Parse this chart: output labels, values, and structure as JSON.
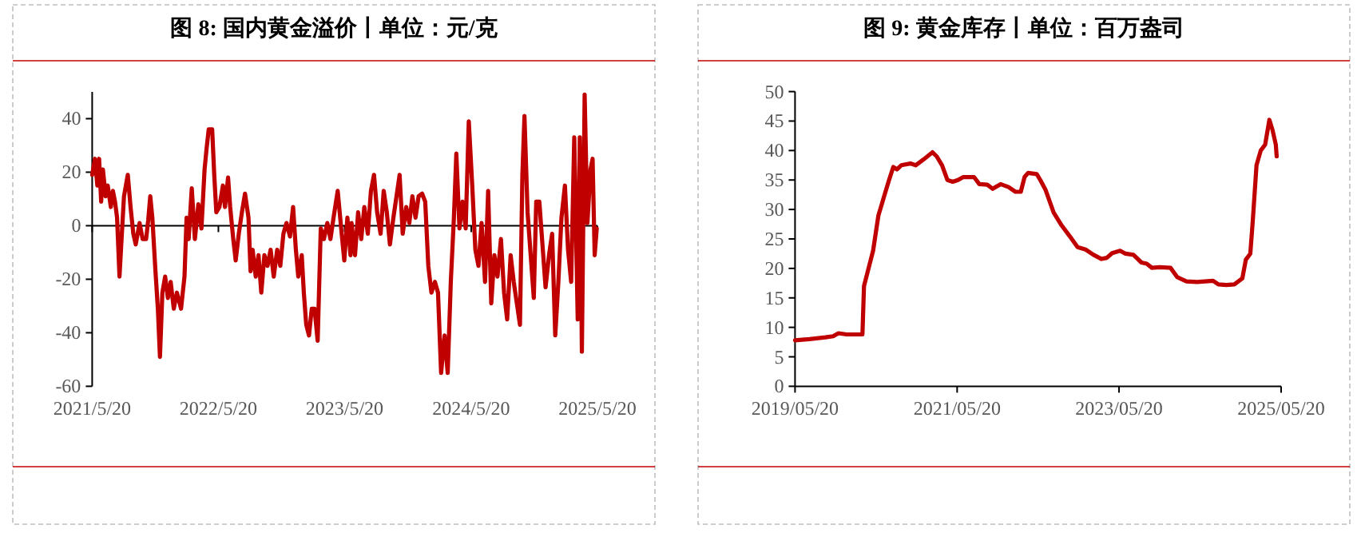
{
  "chart_data": [
    {
      "type": "line",
      "title": "图 8: 国内黄金溢价丨单位：元/克",
      "x": [
        "2021-05-20",
        "2021-05-28",
        "2021-06-04",
        "2021-06-09",
        "2021-06-15",
        "2021-06-20",
        "2021-06-28",
        "2021-07-04",
        "2021-07-13",
        "2021-07-19",
        "2021-07-25",
        "2021-07-31",
        "2021-08-07",
        "2021-08-13",
        "2021-08-20",
        "2021-08-31",
        "2021-09-08",
        "2021-09-16",
        "2021-09-23",
        "2021-10-04",
        "2021-10-13",
        "2021-10-23",
        "2021-10-29",
        "2021-11-04",
        "2021-11-10",
        "2021-11-19",
        "2021-11-26",
        "2021-12-02",
        "2021-12-09",
        "2021-12-17",
        "2021-12-25",
        "2022-01-02",
        "2022-01-11",
        "2022-01-20",
        "2022-02-01",
        "2022-02-11",
        "2022-02-17",
        "2022-02-23",
        "2022-03-04",
        "2022-03-13",
        "2022-03-23",
        "2022-04-01",
        "2022-04-10",
        "2022-04-16",
        "2022-04-22",
        "2022-05-02",
        "2022-05-08",
        "2022-05-14",
        "2022-05-23",
        "2022-06-02",
        "2022-06-08",
        "2022-06-17",
        "2022-06-23",
        "2022-07-02",
        "2022-07-09",
        "2022-07-18",
        "2022-07-27",
        "2022-08-05",
        "2022-08-15",
        "2022-08-21",
        "2022-08-27",
        "2022-09-05",
        "2022-09-13",
        "2022-09-21",
        "2022-09-30",
        "2022-10-09",
        "2022-10-18",
        "2022-10-27",
        "2022-11-06",
        "2022-11-15",
        "2022-11-24",
        "2022-12-03",
        "2022-12-13",
        "2022-12-22",
        "2022-12-30",
        "2023-01-06",
        "2023-01-16",
        "2023-01-22",
        "2023-01-29",
        "2023-02-06",
        "2023-02-14",
        "2023-02-22",
        "2023-03-03",
        "2023-03-12",
        "2023-03-21",
        "2023-03-31",
        "2023-04-09",
        "2023-04-18",
        "2023-04-30",
        "2023-05-10",
        "2023-05-19",
        "2023-05-28",
        "2023-06-06",
        "2023-06-09",
        "2023-06-19",
        "2023-06-28",
        "2023-07-07",
        "2023-07-16",
        "2023-07-26",
        "2023-08-04",
        "2023-08-13",
        "2023-08-22",
        "2023-09-01",
        "2023-09-10",
        "2023-09-19",
        "2023-09-28",
        "2023-10-08",
        "2023-10-17",
        "2023-10-26",
        "2023-11-04",
        "2023-11-14",
        "2023-11-23",
        "2023-12-02",
        "2023-12-11",
        "2023-12-20",
        "2023-12-30",
        "2024-01-08",
        "2024-01-17",
        "2024-01-26",
        "2024-02-05",
        "2024-02-14",
        "2024-02-23",
        "2024-03-04",
        "2024-03-13",
        "2024-03-22",
        "2024-03-31",
        "2024-04-07",
        "2024-04-16",
        "2024-04-25",
        "2024-05-04",
        "2024-05-13",
        "2024-05-23",
        "2024-06-01",
        "2024-06-10",
        "2024-06-19",
        "2024-06-29",
        "2024-07-08",
        "2024-07-17",
        "2024-07-26",
        "2024-08-04",
        "2024-08-14",
        "2024-08-23",
        "2024-09-01",
        "2024-09-11",
        "2024-09-20",
        "2024-09-29",
        "2024-10-08",
        "2024-10-15",
        "2024-10-21",
        "2024-10-30",
        "2024-11-08",
        "2024-11-17",
        "2024-11-24",
        "2024-12-03",
        "2024-12-12",
        "2024-12-21",
        "2024-12-31",
        "2025-01-09",
        "2025-01-18",
        "2025-01-27",
        "2025-02-05",
        "2025-02-15",
        "2025-02-24",
        "2025-03-05",
        "2025-03-14",
        "2025-03-24",
        "2025-03-30",
        "2025-04-05",
        "2025-04-13",
        "2025-04-21",
        "2025-04-30",
        "2025-05-06",
        "2025-05-12",
        "2025-05-18"
      ],
      "series": [
        {
          "color": "#c00000",
          "values": [
            19,
            25,
            15,
            25,
            9,
            21,
            11,
            15,
            7,
            13,
            9,
            3,
            -19,
            -5,
            11,
            19,
            7,
            -3,
            -7,
            1,
            -5,
            -5,
            2,
            11,
            3,
            -17,
            -31,
            -49,
            -25,
            -19,
            -27,
            -21,
            -31,
            -25,
            -31,
            -19,
            3,
            -5,
            14,
            -5,
            8,
            -1,
            21,
            29,
            36,
            36,
            19,
            5,
            7,
            15,
            7,
            18,
            7,
            -5,
            -13,
            -3,
            5,
            12,
            3,
            -17,
            -9,
            -19,
            -11,
            -25,
            -11,
            -15,
            -9,
            -19,
            -9,
            -15,
            -3,
            1,
            -4,
            7,
            -9,
            -19,
            -11,
            -25,
            -37,
            -41,
            -31,
            -31,
            -43,
            -1,
            -5,
            1,
            -5,
            3,
            13,
            -1,
            -13,
            3,
            -11,
            1,
            -11,
            5,
            -5,
            7,
            -3,
            13,
            19,
            5,
            -3,
            13,
            5,
            -7,
            3,
            11,
            19,
            -3,
            7,
            1,
            11,
            3,
            11,
            12,
            9,
            -15,
            -25,
            -21,
            -25,
            -55,
            -41,
            -55,
            -21,
            3,
            27,
            -1,
            9,
            -1,
            39,
            15,
            -9,
            -15,
            1,
            -21,
            13,
            -29,
            -11,
            -19,
            -5,
            -25,
            -35,
            -11,
            -21,
            -29,
            -37,
            19,
            41,
            5,
            -11,
            -27,
            9,
            9,
            -7,
            -23,
            -11,
            -3,
            -41,
            -21,
            3,
            15,
            -9,
            -21,
            33,
            -35,
            33,
            -47,
            49,
            1,
            21,
            25,
            -11,
            -1
          ]
        }
      ],
      "xlim": [
        "2021-05-20",
        "2025-05-20"
      ],
      "xticks": [
        {
          "value": "2021-05-20",
          "label": "2021/5/20"
        },
        {
          "value": "2022-05-20",
          "label": "2022/5/20"
        },
        {
          "value": "2023-05-20",
          "label": "2023/5/20"
        },
        {
          "value": "2024-05-20",
          "label": "2024/5/20"
        },
        {
          "value": "2025-05-20",
          "label": "2025/5/20"
        }
      ],
      "ylim": [
        -60,
        50
      ],
      "yticks": [
        -60,
        -40,
        -20,
        0,
        20,
        40
      ]
    },
    {
      "type": "line",
      "title": "图 9: 黄金库存丨单位：百万盎司",
      "x": [
        "2019-05-20",
        "2019-07-24",
        "2019-10-04",
        "2019-11-08",
        "2019-12-02",
        "2020-01-07",
        "2020-03-19",
        "2020-03-26",
        "2020-04-12",
        "2020-05-06",
        "2020-05-30",
        "2020-06-23",
        "2020-07-17",
        "2020-08-05",
        "2020-08-22",
        "2020-09-10",
        "2020-10-21",
        "2020-11-14",
        "2020-12-20",
        "2021-01-29",
        "2021-02-17",
        "2021-03-13",
        "2021-04-06",
        "2021-04-30",
        "2021-05-24",
        "2021-06-17",
        "2021-08-04",
        "2021-08-28",
        "2021-10-03",
        "2021-10-27",
        "2021-12-02",
        "2022-01-07",
        "2022-02-07",
        "2022-03-03",
        "2022-03-20",
        "2022-04-05",
        "2022-05-14",
        "2022-05-30",
        "2022-06-23",
        "2022-07-29",
        "2022-09-03",
        "2022-10-09",
        "2022-11-14",
        "2022-12-20",
        "2023-01-25",
        "2023-03-02",
        "2023-03-26",
        "2023-04-19",
        "2023-05-25",
        "2023-06-18",
        "2023-07-24",
        "2023-08-29",
        "2023-09-22",
        "2023-10-15",
        "2023-11-20",
        "2024-01-07",
        "2024-02-07",
        "2024-03-19",
        "2024-05-06",
        "2024-07-17",
        "2024-08-10",
        "2024-09-15",
        "2024-10-21",
        "2024-11-26",
        "2024-12-12",
        "2025-01-01",
        "2025-01-12",
        "2025-01-29",
        "2025-02-17",
        "2025-03-09",
        "2025-03-28",
        "2025-04-11",
        "2025-04-26",
        "2025-04-30"
      ],
      "series": [
        {
          "color": "#c00000",
          "values": [
            7.8,
            8.0,
            8.3,
            8.5,
            9.0,
            8.8,
            8.8,
            17,
            19.5,
            23,
            29,
            32,
            35,
            37.2,
            36.8,
            37.5,
            37.8,
            37.5,
            38.5,
            39.7,
            39,
            37.5,
            35,
            34.7,
            35,
            35.5,
            35.5,
            34.3,
            34.2,
            33.5,
            34.3,
            33.8,
            33,
            33,
            35.5,
            36.2,
            36,
            35,
            33.3,
            29.5,
            27.3,
            25.5,
            23.6,
            23.2,
            22.3,
            21.6,
            21.8,
            22.6,
            23,
            22.5,
            22.3,
            21,
            20.8,
            20.1,
            20.2,
            20.1,
            18.5,
            17.8,
            17.7,
            17.9,
            17.3,
            17.2,
            17.3,
            18.3,
            21.5,
            22.5,
            28,
            37.5,
            40,
            41,
            45.2,
            43.5,
            41,
            39
          ]
        }
      ],
      "xlim": [
        "2019-05-20",
        "2025-05-20"
      ],
      "xticks": [
        {
          "value": "2019-05-20",
          "label": "2019/05/20"
        },
        {
          "value": "2021-05-20",
          "label": "2021/05/20"
        },
        {
          "value": "2023-05-20",
          "label": "2023/05/20"
        },
        {
          "value": "2025-05-20",
          "label": "2025/05/20"
        }
      ],
      "ylim": [
        0,
        50
      ],
      "yticks": [
        0,
        5,
        10,
        15,
        20,
        25,
        30,
        35,
        40,
        45,
        50
      ]
    }
  ]
}
